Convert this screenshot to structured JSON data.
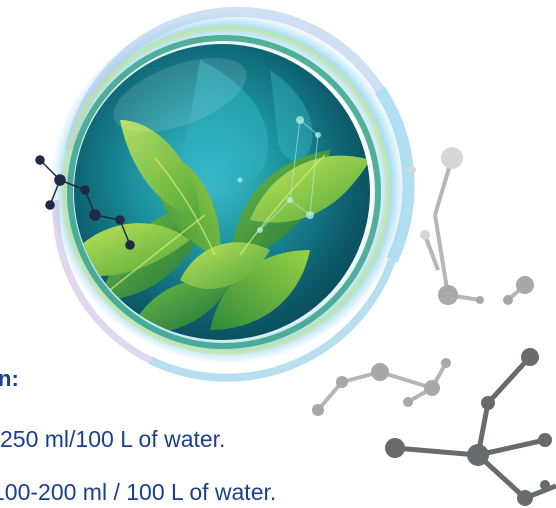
{
  "text": {
    "heading_fragment": "n:",
    "line_1": "250 ml/100 L of water.",
    "line_2": "100-200 ml / 100 L of water."
  },
  "colors": {
    "text_primary": "#1c3f8f",
    "leaf_light": "#a6d63b",
    "leaf_mid": "#4fa63a",
    "leaf_dark": "#1f6e3a",
    "sphere_teal": "#0f7f86",
    "molecule_gray": "#9b9b9b",
    "molecule_dark": "#555a5c"
  },
  "icons": {
    "sphere": "eco-sphere-with-leaves-icon",
    "molecules_left": "molecule-network-icon",
    "molecules_right": "molecule-network-icon"
  }
}
